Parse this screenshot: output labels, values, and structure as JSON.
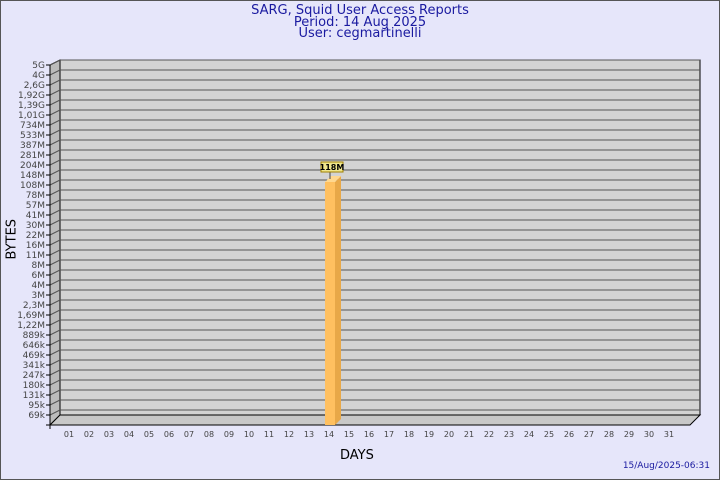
{
  "chart_data": {
    "type": "bar",
    "title": [
      "SARG, Squid User Access Reports",
      "Period: 14 Aug 2025",
      "User: cegmartinelli"
    ],
    "xlabel": "DAYS",
    "ylabel": "BYTES",
    "y_scale": "log",
    "y_ticks": [
      "5G",
      "4G",
      "2,6G",
      "1,92G",
      "1,39G",
      "1,01G",
      "734M",
      "533M",
      "387M",
      "281M",
      "204M",
      "148M",
      "108M",
      "78M",
      "57M",
      "41M",
      "30M",
      "22M",
      "16M",
      "11M",
      "8M",
      "6M",
      "4M",
      "3M",
      "2,3M",
      "1,69M",
      "1,22M",
      "889k",
      "646k",
      "469k",
      "341k",
      "247k",
      "180k",
      "131k",
      "95k",
      "69k"
    ],
    "categories": [
      "01",
      "02",
      "03",
      "04",
      "05",
      "06",
      "07",
      "08",
      "09",
      "10",
      "11",
      "12",
      "13",
      "14",
      "15",
      "16",
      "17",
      "18",
      "19",
      "20",
      "21",
      "22",
      "23",
      "24",
      "25",
      "26",
      "27",
      "28",
      "29",
      "30",
      "31"
    ],
    "values": {
      "14": "118M"
    },
    "data_labels": [
      {
        "day": "14",
        "label": "118M"
      }
    ],
    "grid": true,
    "bar_color": "#ffc060",
    "plot_bg": "#d3d3d3"
  },
  "timestamp": "15/Aug/2025-06:31"
}
